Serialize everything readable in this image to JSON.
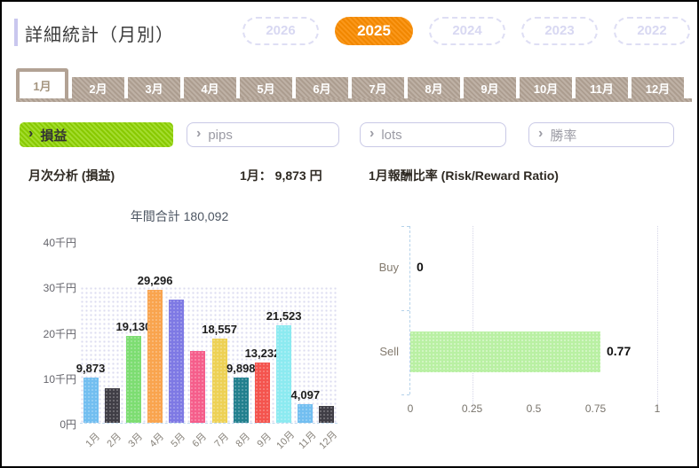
{
  "header": {
    "title": "詳細統計（月別）",
    "years": [
      {
        "label": "2026",
        "active": false
      },
      {
        "label": "2025",
        "active": true
      },
      {
        "label": "2024",
        "active": false
      },
      {
        "label": "2023",
        "active": false
      },
      {
        "label": "2022",
        "active": false
      }
    ],
    "active_year_color": "#f98b00"
  },
  "month_tabs": {
    "items": [
      "1月",
      "2月",
      "3月",
      "4月",
      "5月",
      "6月",
      "7月",
      "8月",
      "9月",
      "10月",
      "11月",
      "12月"
    ],
    "active_index": 0,
    "tab_color": "#b2a294"
  },
  "filters": {
    "chevron_icon": "›",
    "items": [
      {
        "label": "損益",
        "active": true
      },
      {
        "label": "pips",
        "active": false
      },
      {
        "label": "lots",
        "active": false
      },
      {
        "label": "勝率",
        "active": false
      }
    ],
    "active_color": "#8fd400"
  },
  "summary": {
    "left": "月次分析 (損益)",
    "center": "1月： 9,873 円",
    "right": "1月報酬比率 (Risk/Reward Ratio)"
  },
  "chart_data": [
    {
      "type": "bar",
      "title": "年間合計 180,092",
      "categories": [
        "1月",
        "2月",
        "3月",
        "4月",
        "5月",
        "6月",
        "7月",
        "8月",
        "9月",
        "10月",
        "11月",
        "12月"
      ],
      "values": [
        9873,
        7700,
        19130,
        29296,
        27200,
        15786,
        18557,
        9898,
        13232,
        21523,
        4097,
        3800
      ],
      "data_labels": [
        "9,873",
        null,
        "19,130",
        "29,296",
        null,
        null,
        "18,557",
        "9,898",
        "13,232",
        "21,523",
        "4,097",
        null
      ],
      "bar_colors": [
        "#72bef0",
        "#403e46",
        "#7ddd72",
        "#f9a44e",
        "#7e79e4",
        "#f55e8b",
        "#edd155",
        "#22808e",
        "#f4544e",
        "#8ceaf0",
        "#72bef0",
        "#403e46"
      ],
      "y_ticks": [
        "40千円",
        "30千円",
        "20千円",
        "10千円",
        "0円"
      ],
      "ylim": [
        0,
        40000
      ],
      "band_max": 30000,
      "grid": false,
      "xlabel": "",
      "ylabel": ""
    },
    {
      "type": "bar-horizontal",
      "title": "1月報酬比率 (Risk/Reward Ratio)",
      "categories": [
        "Buy",
        "Sell"
      ],
      "values": [
        0,
        0.77
      ],
      "data_labels": [
        "0",
        "0.77"
      ],
      "bar_color": "#b9f0a3",
      "x_ticks": [
        "0",
        "0.25",
        "0.5",
        "0.75",
        "1"
      ],
      "gridline_values": [
        0.25,
        1
      ],
      "xlim": [
        0,
        1
      ],
      "grid": true
    }
  ]
}
